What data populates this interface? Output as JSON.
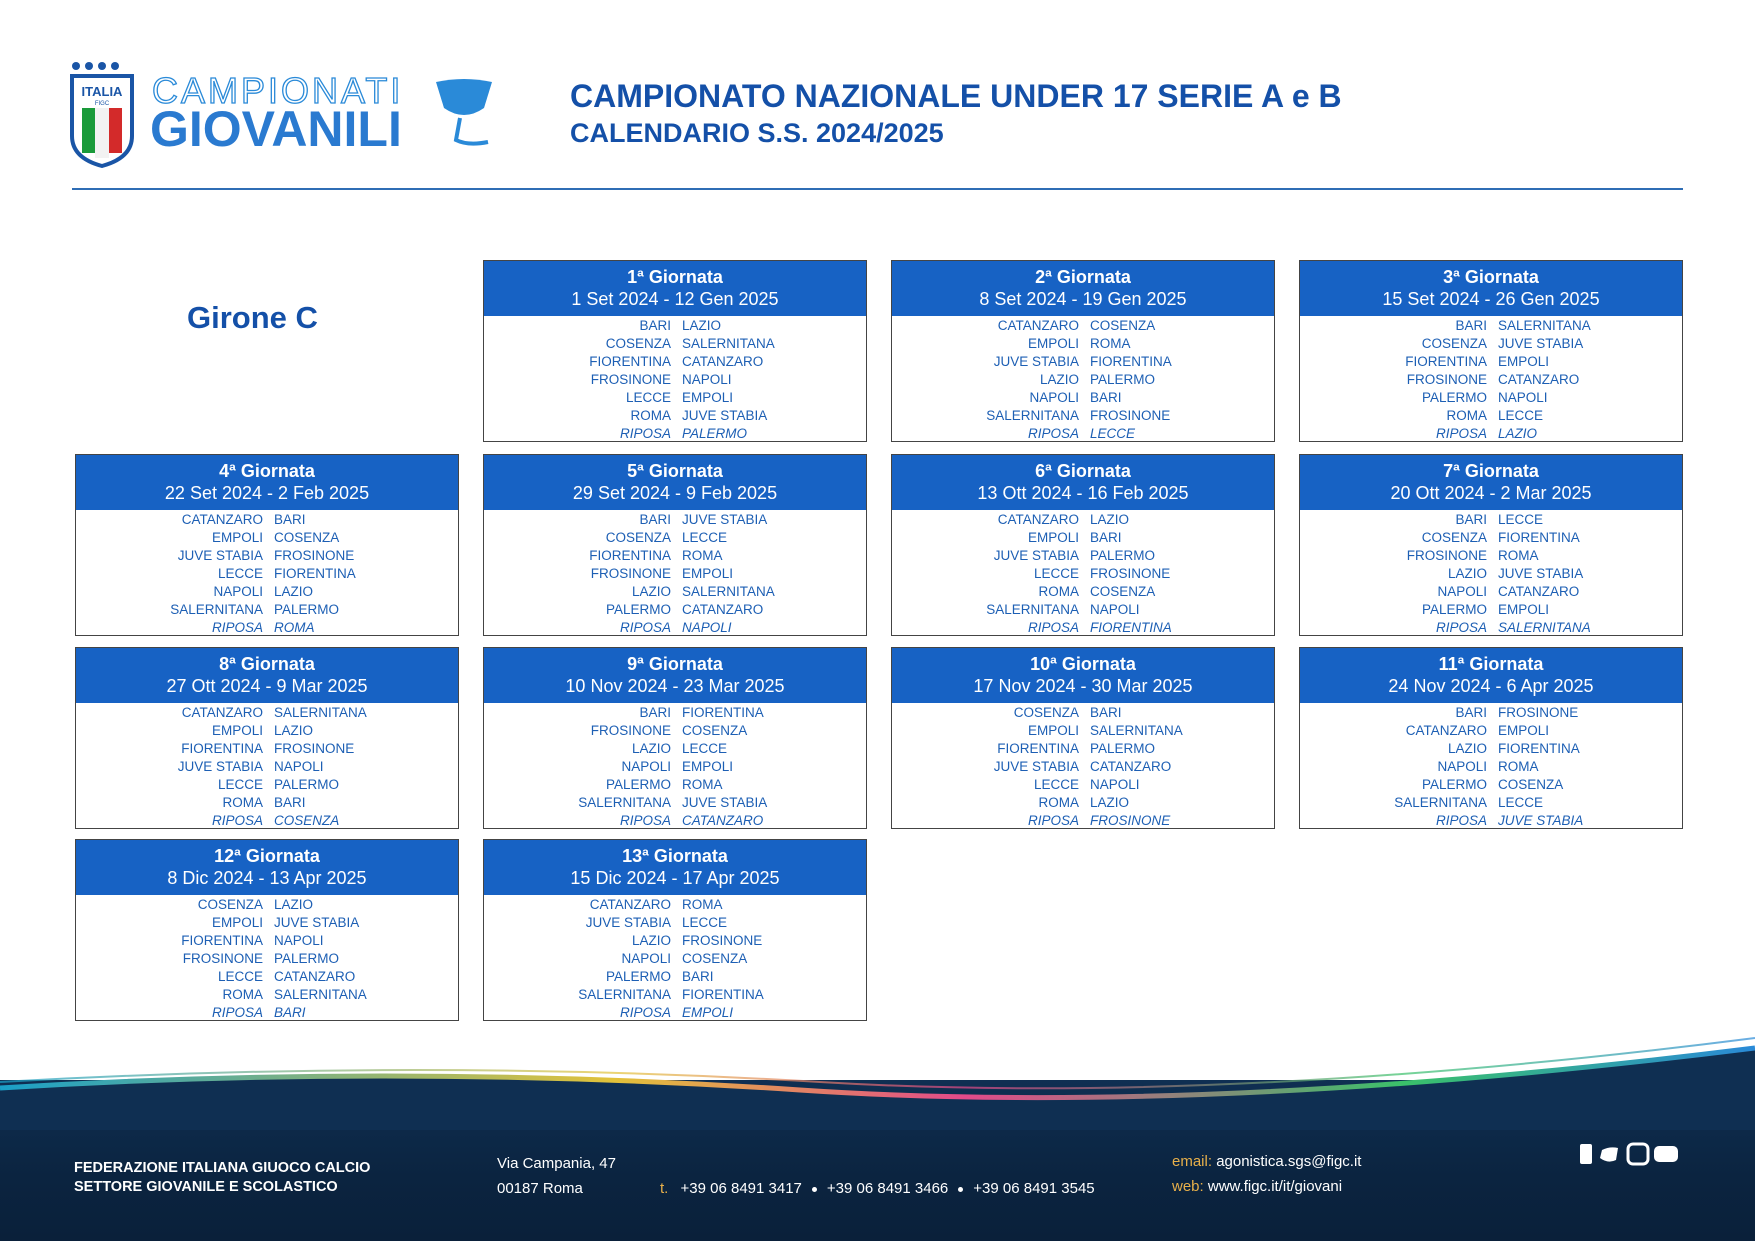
{
  "header": {
    "logo_badge": "ITALIA",
    "logo_badge_sub": "FIGC",
    "logo_line1": "CAMPIONATI",
    "logo_line2": "GIOVANILI",
    "title": "CAMPIONATO NAZIONALE UNDER 17 SERIE A e B",
    "subtitle": "CALENDARIO S.S. 2024/2025"
  },
  "girone": "Girone C",
  "rounds": [
    {
      "title": "1ª Giornata",
      "dates": "1 Set 2024 - 12 Gen 2025",
      "matches": [
        [
          "BARI",
          "LAZIO"
        ],
        [
          "COSENZA",
          "SALERNITANA"
        ],
        [
          "FIORENTINA",
          "CATANZARO"
        ],
        [
          "FROSINONE",
          "NAPOLI"
        ],
        [
          "LECCE",
          "EMPOLI"
        ],
        [
          "ROMA",
          "JUVE STABIA"
        ]
      ],
      "rest": {
        "label": "RIPOSA",
        "team": "PALERMO"
      }
    },
    {
      "title": "2ª Giornata",
      "dates": "8 Set 2024 - 19 Gen 2025",
      "matches": [
        [
          "CATANZARO",
          "COSENZA"
        ],
        [
          "EMPOLI",
          "ROMA"
        ],
        [
          "JUVE STABIA",
          "FIORENTINA"
        ],
        [
          "LAZIO",
          "PALERMO"
        ],
        [
          "NAPOLI",
          "BARI"
        ],
        [
          "SALERNITANA",
          "FROSINONE"
        ]
      ],
      "rest": {
        "label": "RIPOSA",
        "team": "LECCE"
      }
    },
    {
      "title": "3ª Giornata",
      "dates": "15 Set 2024 - 26 Gen 2025",
      "matches": [
        [
          "BARI",
          "SALERNITANA"
        ],
        [
          "COSENZA",
          "JUVE STABIA"
        ],
        [
          "FIORENTINA",
          "EMPOLI"
        ],
        [
          "FROSINONE",
          "CATANZARO"
        ],
        [
          "PALERMO",
          "NAPOLI"
        ],
        [
          "ROMA",
          "LECCE"
        ]
      ],
      "rest": {
        "label": "RIPOSA",
        "team": "LAZIO"
      }
    },
    {
      "title": "4ª Giornata",
      "dates": "22 Set 2024 - 2 Feb 2025",
      "matches": [
        [
          "CATANZARO",
          "BARI"
        ],
        [
          "EMPOLI",
          "COSENZA"
        ],
        [
          "JUVE STABIA",
          "FROSINONE"
        ],
        [
          "LECCE",
          "FIORENTINA"
        ],
        [
          "NAPOLI",
          "LAZIO"
        ],
        [
          "SALERNITANA",
          "PALERMO"
        ]
      ],
      "rest": {
        "label": "RIPOSA",
        "team": "ROMA"
      }
    },
    {
      "title": "5ª Giornata",
      "dates": "29 Set 2024 - 9 Feb 2025",
      "matches": [
        [
          "BARI",
          "JUVE STABIA"
        ],
        [
          "COSENZA",
          "LECCE"
        ],
        [
          "FIORENTINA",
          "ROMA"
        ],
        [
          "FROSINONE",
          "EMPOLI"
        ],
        [
          "LAZIO",
          "SALERNITANA"
        ],
        [
          "PALERMO",
          "CATANZARO"
        ]
      ],
      "rest": {
        "label": "RIPOSA",
        "team": "NAPOLI"
      }
    },
    {
      "title": "6ª Giornata",
      "dates": "13 Ott 2024 - 16 Feb 2025",
      "matches": [
        [
          "CATANZARO",
          "LAZIO"
        ],
        [
          "EMPOLI",
          "BARI"
        ],
        [
          "JUVE STABIA",
          "PALERMO"
        ],
        [
          "LECCE",
          "FROSINONE"
        ],
        [
          "ROMA",
          "COSENZA"
        ],
        [
          "SALERNITANA",
          "NAPOLI"
        ]
      ],
      "rest": {
        "label": "RIPOSA",
        "team": "FIORENTINA"
      }
    },
    {
      "title": "7ª Giornata",
      "dates": "20 Ott 2024 - 2 Mar 2025",
      "matches": [
        [
          "BARI",
          "LECCE"
        ],
        [
          "COSENZA",
          "FIORENTINA"
        ],
        [
          "FROSINONE",
          "ROMA"
        ],
        [
          "LAZIO",
          "JUVE STABIA"
        ],
        [
          "NAPOLI",
          "CATANZARO"
        ],
        [
          "PALERMO",
          "EMPOLI"
        ]
      ],
      "rest": {
        "label": "RIPOSA",
        "team": "SALERNITANA"
      }
    },
    {
      "title": "8ª Giornata",
      "dates": "27 Ott 2024 - 9 Mar 2025",
      "matches": [
        [
          "CATANZARO",
          "SALERNITANA"
        ],
        [
          "EMPOLI",
          "LAZIO"
        ],
        [
          "FIORENTINA",
          "FROSINONE"
        ],
        [
          "JUVE STABIA",
          "NAPOLI"
        ],
        [
          "LECCE",
          "PALERMO"
        ],
        [
          "ROMA",
          "BARI"
        ]
      ],
      "rest": {
        "label": "RIPOSA",
        "team": "COSENZA"
      }
    },
    {
      "title": "9ª Giornata",
      "dates": "10 Nov 2024 - 23 Mar 2025",
      "matches": [
        [
          "BARI",
          "FIORENTINA"
        ],
        [
          "FROSINONE",
          "COSENZA"
        ],
        [
          "LAZIO",
          "LECCE"
        ],
        [
          "NAPOLI",
          "EMPOLI"
        ],
        [
          "PALERMO",
          "ROMA"
        ],
        [
          "SALERNITANA",
          "JUVE STABIA"
        ]
      ],
      "rest": {
        "label": "RIPOSA",
        "team": "CATANZARO"
      }
    },
    {
      "title": "10ª Giornata",
      "dates": "17 Nov 2024 - 30 Mar 2025",
      "matches": [
        [
          "COSENZA",
          "BARI"
        ],
        [
          "EMPOLI",
          "SALERNITANA"
        ],
        [
          "FIORENTINA",
          "PALERMO"
        ],
        [
          "JUVE STABIA",
          "CATANZARO"
        ],
        [
          "LECCE",
          "NAPOLI"
        ],
        [
          "ROMA",
          "LAZIO"
        ]
      ],
      "rest": {
        "label": "RIPOSA",
        "team": "FROSINONE"
      }
    },
    {
      "title": "11ª Giornata",
      "dates": "24 Nov 2024 - 6 Apr 2025",
      "matches": [
        [
          "BARI",
          "FROSINONE"
        ],
        [
          "CATANZARO",
          "EMPOLI"
        ],
        [
          "LAZIO",
          "FIORENTINA"
        ],
        [
          "NAPOLI",
          "ROMA"
        ],
        [
          "PALERMO",
          "COSENZA"
        ],
        [
          "SALERNITANA",
          "LECCE"
        ]
      ],
      "rest": {
        "label": "RIPOSA",
        "team": "JUVE STABIA"
      }
    },
    {
      "title": "12ª Giornata",
      "dates": "8 Dic 2024 - 13 Apr 2025",
      "matches": [
        [
          "COSENZA",
          "LAZIO"
        ],
        [
          "EMPOLI",
          "JUVE STABIA"
        ],
        [
          "FIORENTINA",
          "NAPOLI"
        ],
        [
          "FROSINONE",
          "PALERMO"
        ],
        [
          "LECCE",
          "CATANZARO"
        ],
        [
          "ROMA",
          "SALERNITANA"
        ]
      ],
      "rest": {
        "label": "RIPOSA",
        "team": "BARI"
      }
    },
    {
      "title": "13ª Giornata",
      "dates": "15 Dic 2024 - 17 Apr 2025",
      "matches": [
        [
          "CATANZARO",
          "ROMA"
        ],
        [
          "JUVE STABIA",
          "LECCE"
        ],
        [
          "LAZIO",
          "FROSINONE"
        ],
        [
          "NAPOLI",
          "COSENZA"
        ],
        [
          "PALERMO",
          "BARI"
        ],
        [
          "SALERNITANA",
          "FIORENTINA"
        ]
      ],
      "rest": {
        "label": "RIPOSA",
        "team": "EMPOLI"
      }
    }
  ],
  "footer": {
    "org_line1": "FEDERAZIONE ITALIANA GIUOCO CALCIO",
    "org_line2": "SETTORE GIOVANILE E SCOLASTICO",
    "address_line1": "Via Campania, 47",
    "address_line2": "00187 Roma",
    "phone_label": "t.",
    "phones": [
      "+39 06 8491 3417",
      "+39 06 8491 3466",
      "+39 06 8491 3545"
    ],
    "email_label": "email:",
    "email": "agonistica.sgs@figc.it",
    "web_label": "web:",
    "web": "www.figc.it/it/giovani"
  }
}
